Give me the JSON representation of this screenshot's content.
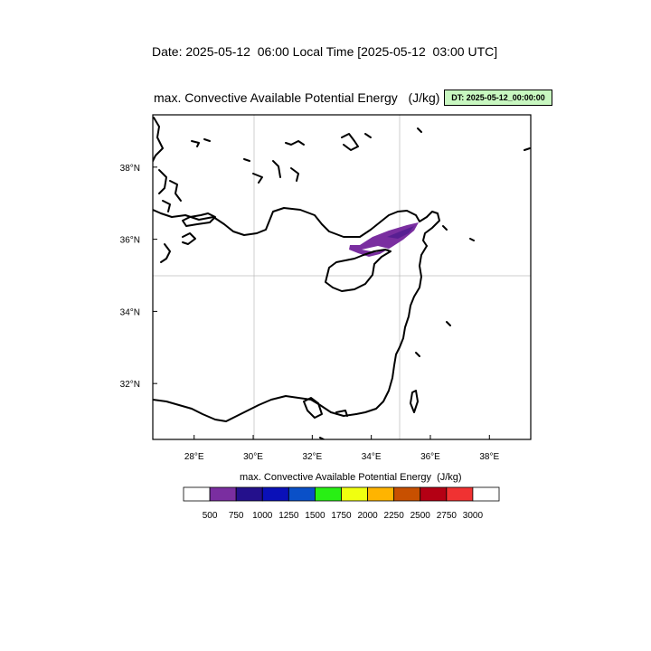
{
  "header": {
    "date_line": "Date: 2025-05-12  06:00 Local Time [2025-05-12  03:00 UTC]",
    "map_title": "max. Convective Available Potential Energy   (J/kg)",
    "dt_badge": "DT: 2025-05-12_00:00:00"
  },
  "map": {
    "lon_range": [
      26.6,
      39.4
    ],
    "lat_range": [
      30.45,
      39.45
    ],
    "lon_ticks": [
      {
        "value": 28,
        "label": "28°E"
      },
      {
        "value": 30,
        "label": "30°E"
      },
      {
        "value": 32,
        "label": "32°E"
      },
      {
        "value": 34,
        "label": "34°E"
      },
      {
        "value": 36,
        "label": "36°E"
      },
      {
        "value": 38,
        "label": "38°E"
      }
    ],
    "lat_ticks": [
      {
        "value": 32,
        "label": "32°N"
      },
      {
        "value": 34,
        "label": "34°N"
      },
      {
        "value": 36,
        "label": "36°N"
      },
      {
        "value": 38,
        "label": "38°N"
      }
    ],
    "gridlines": {
      "lon": 30,
      "lon2": 35,
      "lat": 35
    },
    "cape_region_color": "#7a2ea0",
    "cape_region_dark": "#4a1a8c"
  },
  "colorbar": {
    "title": "max. Convective Available Potential Energy  (J/kg)",
    "colors": [
      "#ffffff",
      "#7a2ea0",
      "#24108c",
      "#0a10b8",
      "#0a50c8",
      "#28f014",
      "#f0ff10",
      "#ffb400",
      "#c85000",
      "#b40014",
      "#f03232",
      "#ffffff"
    ],
    "labels": [
      "500",
      "750",
      "1000",
      "1250",
      "1500",
      "1750",
      "2000",
      "2250",
      "2500",
      "2750",
      "3000"
    ]
  }
}
